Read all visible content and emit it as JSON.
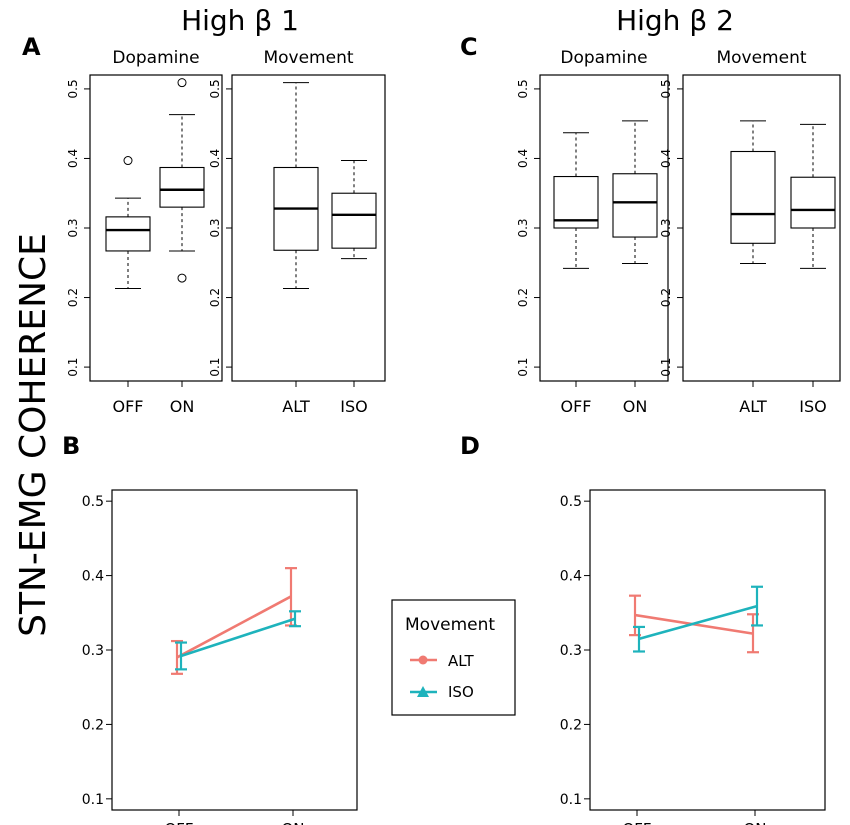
{
  "figure": {
    "ylabel": "STN-EMG COHERENCE",
    "title_left": "High β 1",
    "title_right": "High β 2",
    "panel_labels": [
      "A",
      "B",
      "C",
      "D"
    ]
  },
  "colors": {
    "alt": "#F07A72",
    "iso": "#1EB3BC"
  },
  "chart_data": [
    {
      "id": "A-dopamine",
      "type": "box",
      "panel": "A",
      "title": "Dopamine",
      "ylim": [
        0.08,
        0.52
      ],
      "yticks": [
        "0.1",
        "0.2",
        "0.3",
        "0.4",
        "0.5"
      ],
      "categories": [
        "OFF",
        "ON"
      ],
      "boxes": [
        {
          "label": "OFF",
          "whisker_low": 0.213,
          "q1": 0.267,
          "median": 0.297,
          "q3": 0.316,
          "whisker_high": 0.343,
          "outliers": [
            0.397
          ]
        },
        {
          "label": "ON",
          "whisker_low": 0.267,
          "q1": 0.33,
          "median": 0.355,
          "q3": 0.387,
          "whisker_high": 0.463,
          "outliers": [
            0.509,
            0.228
          ]
        }
      ]
    },
    {
      "id": "A-movement",
      "type": "box",
      "panel": "A",
      "title": "Movement",
      "ylim": [
        0.08,
        0.52
      ],
      "yticks": [
        "0.1",
        "0.2",
        "0.3",
        "0.4",
        "0.5"
      ],
      "categories": [
        "ALT",
        "ISO"
      ],
      "boxes": [
        {
          "label": "ALT",
          "whisker_low": 0.213,
          "q1": 0.268,
          "median": 0.328,
          "q3": 0.387,
          "whisker_high": 0.509,
          "outliers": []
        },
        {
          "label": "ISO",
          "whisker_low": 0.256,
          "q1": 0.271,
          "median": 0.319,
          "q3": 0.35,
          "whisker_high": 0.397,
          "outliers": []
        }
      ]
    },
    {
      "id": "C-dopamine",
      "type": "box",
      "panel": "C",
      "title": "Dopamine",
      "ylim": [
        0.08,
        0.52
      ],
      "yticks": [
        "0.1",
        "0.2",
        "0.3",
        "0.4",
        "0.5"
      ],
      "categories": [
        "OFF",
        "ON"
      ],
      "boxes": [
        {
          "label": "OFF",
          "whisker_low": 0.242,
          "q1": 0.3,
          "median": 0.311,
          "q3": 0.374,
          "whisker_high": 0.437,
          "outliers": []
        },
        {
          "label": "ON",
          "whisker_low": 0.249,
          "q1": 0.287,
          "median": 0.337,
          "q3": 0.378,
          "whisker_high": 0.454,
          "outliers": []
        }
      ]
    },
    {
      "id": "C-movement",
      "type": "box",
      "panel": "C",
      "title": "Movement",
      "ylim": [
        0.08,
        0.52
      ],
      "yticks": [
        "0.1",
        "0.2",
        "0.3",
        "0.4",
        "0.5"
      ],
      "categories": [
        "ALT",
        "ISO"
      ],
      "boxes": [
        {
          "label": "ALT",
          "whisker_low": 0.249,
          "q1": 0.278,
          "median": 0.32,
          "q3": 0.41,
          "whisker_high": 0.454,
          "outliers": []
        },
        {
          "label": "ISO",
          "whisker_low": 0.242,
          "q1": 0.3,
          "median": 0.326,
          "q3": 0.373,
          "whisker_high": 0.449,
          "outliers": []
        }
      ]
    },
    {
      "id": "B",
      "type": "line",
      "panel": "B",
      "ylim": [
        0.085,
        0.515
      ],
      "yticks": [
        "0.1",
        "0.2",
        "0.3",
        "0.4",
        "0.5"
      ],
      "categories": [
        "OFF",
        "ON"
      ],
      "series": [
        {
          "name": "ALT",
          "values": [
            0.29,
            0.372
          ],
          "err_low": [
            0.268,
            0.333
          ],
          "err_high": [
            0.312,
            0.41
          ]
        },
        {
          "name": "ISO",
          "values": [
            0.292,
            0.342
          ],
          "err_low": [
            0.274,
            0.332
          ],
          "err_high": [
            0.31,
            0.352
          ]
        }
      ]
    },
    {
      "id": "D",
      "type": "line",
      "panel": "D",
      "ylim": [
        0.085,
        0.515
      ],
      "yticks": [
        "0.1",
        "0.2",
        "0.3",
        "0.4",
        "0.5"
      ],
      "categories": [
        "OFF",
        "ON"
      ],
      "series": [
        {
          "name": "ALT",
          "values": [
            0.347,
            0.322
          ],
          "err_low": [
            0.32,
            0.297
          ],
          "err_high": [
            0.373,
            0.348
          ]
        },
        {
          "name": "ISO",
          "values": [
            0.315,
            0.359
          ],
          "err_low": [
            0.298,
            0.333
          ],
          "err_high": [
            0.331,
            0.385
          ]
        }
      ]
    }
  ],
  "legend": {
    "title": "Movement",
    "items": [
      {
        "label": "ALT",
        "color": "#F07A72",
        "marker": "circle"
      },
      {
        "label": "ISO",
        "color": "#1EB3BC",
        "marker": "triangle"
      }
    ]
  }
}
